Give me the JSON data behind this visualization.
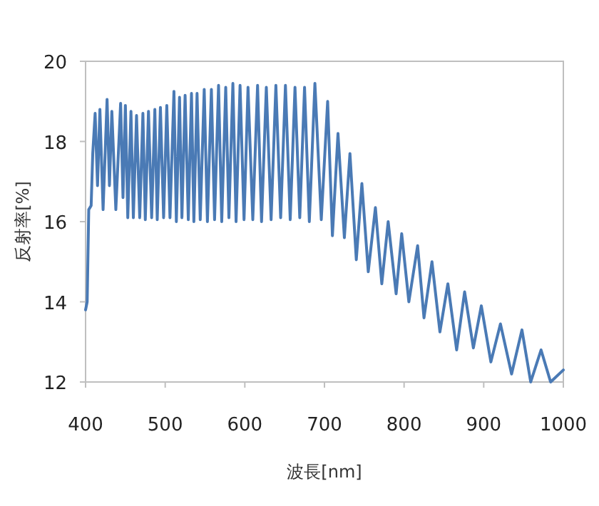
{
  "chart_data": {
    "type": "line",
    "xlabel": "波長[nm]",
    "ylabel": "反射率[%]",
    "xlim": [
      400,
      1000
    ],
    "ylim": [
      12,
      20
    ],
    "xticks": [
      400,
      500,
      600,
      700,
      800,
      900,
      1000
    ],
    "yticks": [
      12,
      14,
      16,
      18,
      20
    ],
    "color": "#4a7ab5",
    "x": [
      400,
      402,
      404,
      407,
      409,
      412,
      415,
      418,
      422,
      427,
      430,
      433,
      438,
      444,
      447,
      450,
      453,
      457,
      460,
      464,
      468,
      472,
      475,
      479,
      483,
      487,
      490,
      494,
      498,
      502,
      506,
      511,
      514,
      518,
      521,
      525,
      529,
      533,
      536,
      540,
      544,
      549,
      553,
      558,
      562,
      567,
      571,
      576,
      580,
      585,
      589,
      594,
      599,
      604,
      610,
      616,
      621,
      627,
      633,
      639,
      645,
      651,
      657,
      663,
      669,
      675,
      681,
      688,
      696,
      704,
      710,
      717,
      725,
      732,
      740,
      747,
      755,
      764,
      772,
      780,
      790,
      797,
      806,
      817,
      825,
      835,
      845,
      855,
      866,
      876,
      887,
      897,
      909,
      921,
      935,
      948,
      959,
      972,
      984,
      1000
    ],
    "values": [
      13.8,
      14.0,
      16.3,
      16.4,
      17.7,
      18.7,
      16.9,
      18.8,
      16.3,
      19.05,
      16.9,
      18.75,
      16.3,
      18.95,
      16.6,
      18.9,
      16.1,
      18.75,
      16.1,
      18.65,
      16.1,
      18.7,
      16.05,
      18.75,
      16.1,
      18.8,
      16.05,
      18.85,
      16.1,
      18.9,
      16.1,
      19.25,
      16.0,
      19.1,
      16.1,
      19.15,
      16.05,
      19.2,
      16.0,
      19.2,
      16.05,
      19.3,
      16.0,
      19.3,
      16.05,
      19.4,
      16.0,
      19.35,
      16.1,
      19.45,
      16.0,
      19.4,
      16.05,
      19.35,
      16.05,
      19.4,
      16.0,
      19.35,
      16.05,
      19.4,
      16.1,
      19.4,
      16.05,
      19.35,
      16.1,
      19.35,
      16.0,
      19.45,
      16.05,
      19.0,
      15.65,
      18.2,
      15.6,
      17.7,
      15.05,
      16.95,
      14.75,
      16.35,
      14.45,
      16.0,
      14.2,
      15.7,
      14.0,
      15.4,
      13.6,
      15.0,
      13.25,
      14.45,
      12.8,
      14.25,
      12.85,
      13.9,
      12.5,
      13.45,
      12.2,
      13.3,
      12.0,
      12.8,
      12.0,
      12.3
    ]
  }
}
